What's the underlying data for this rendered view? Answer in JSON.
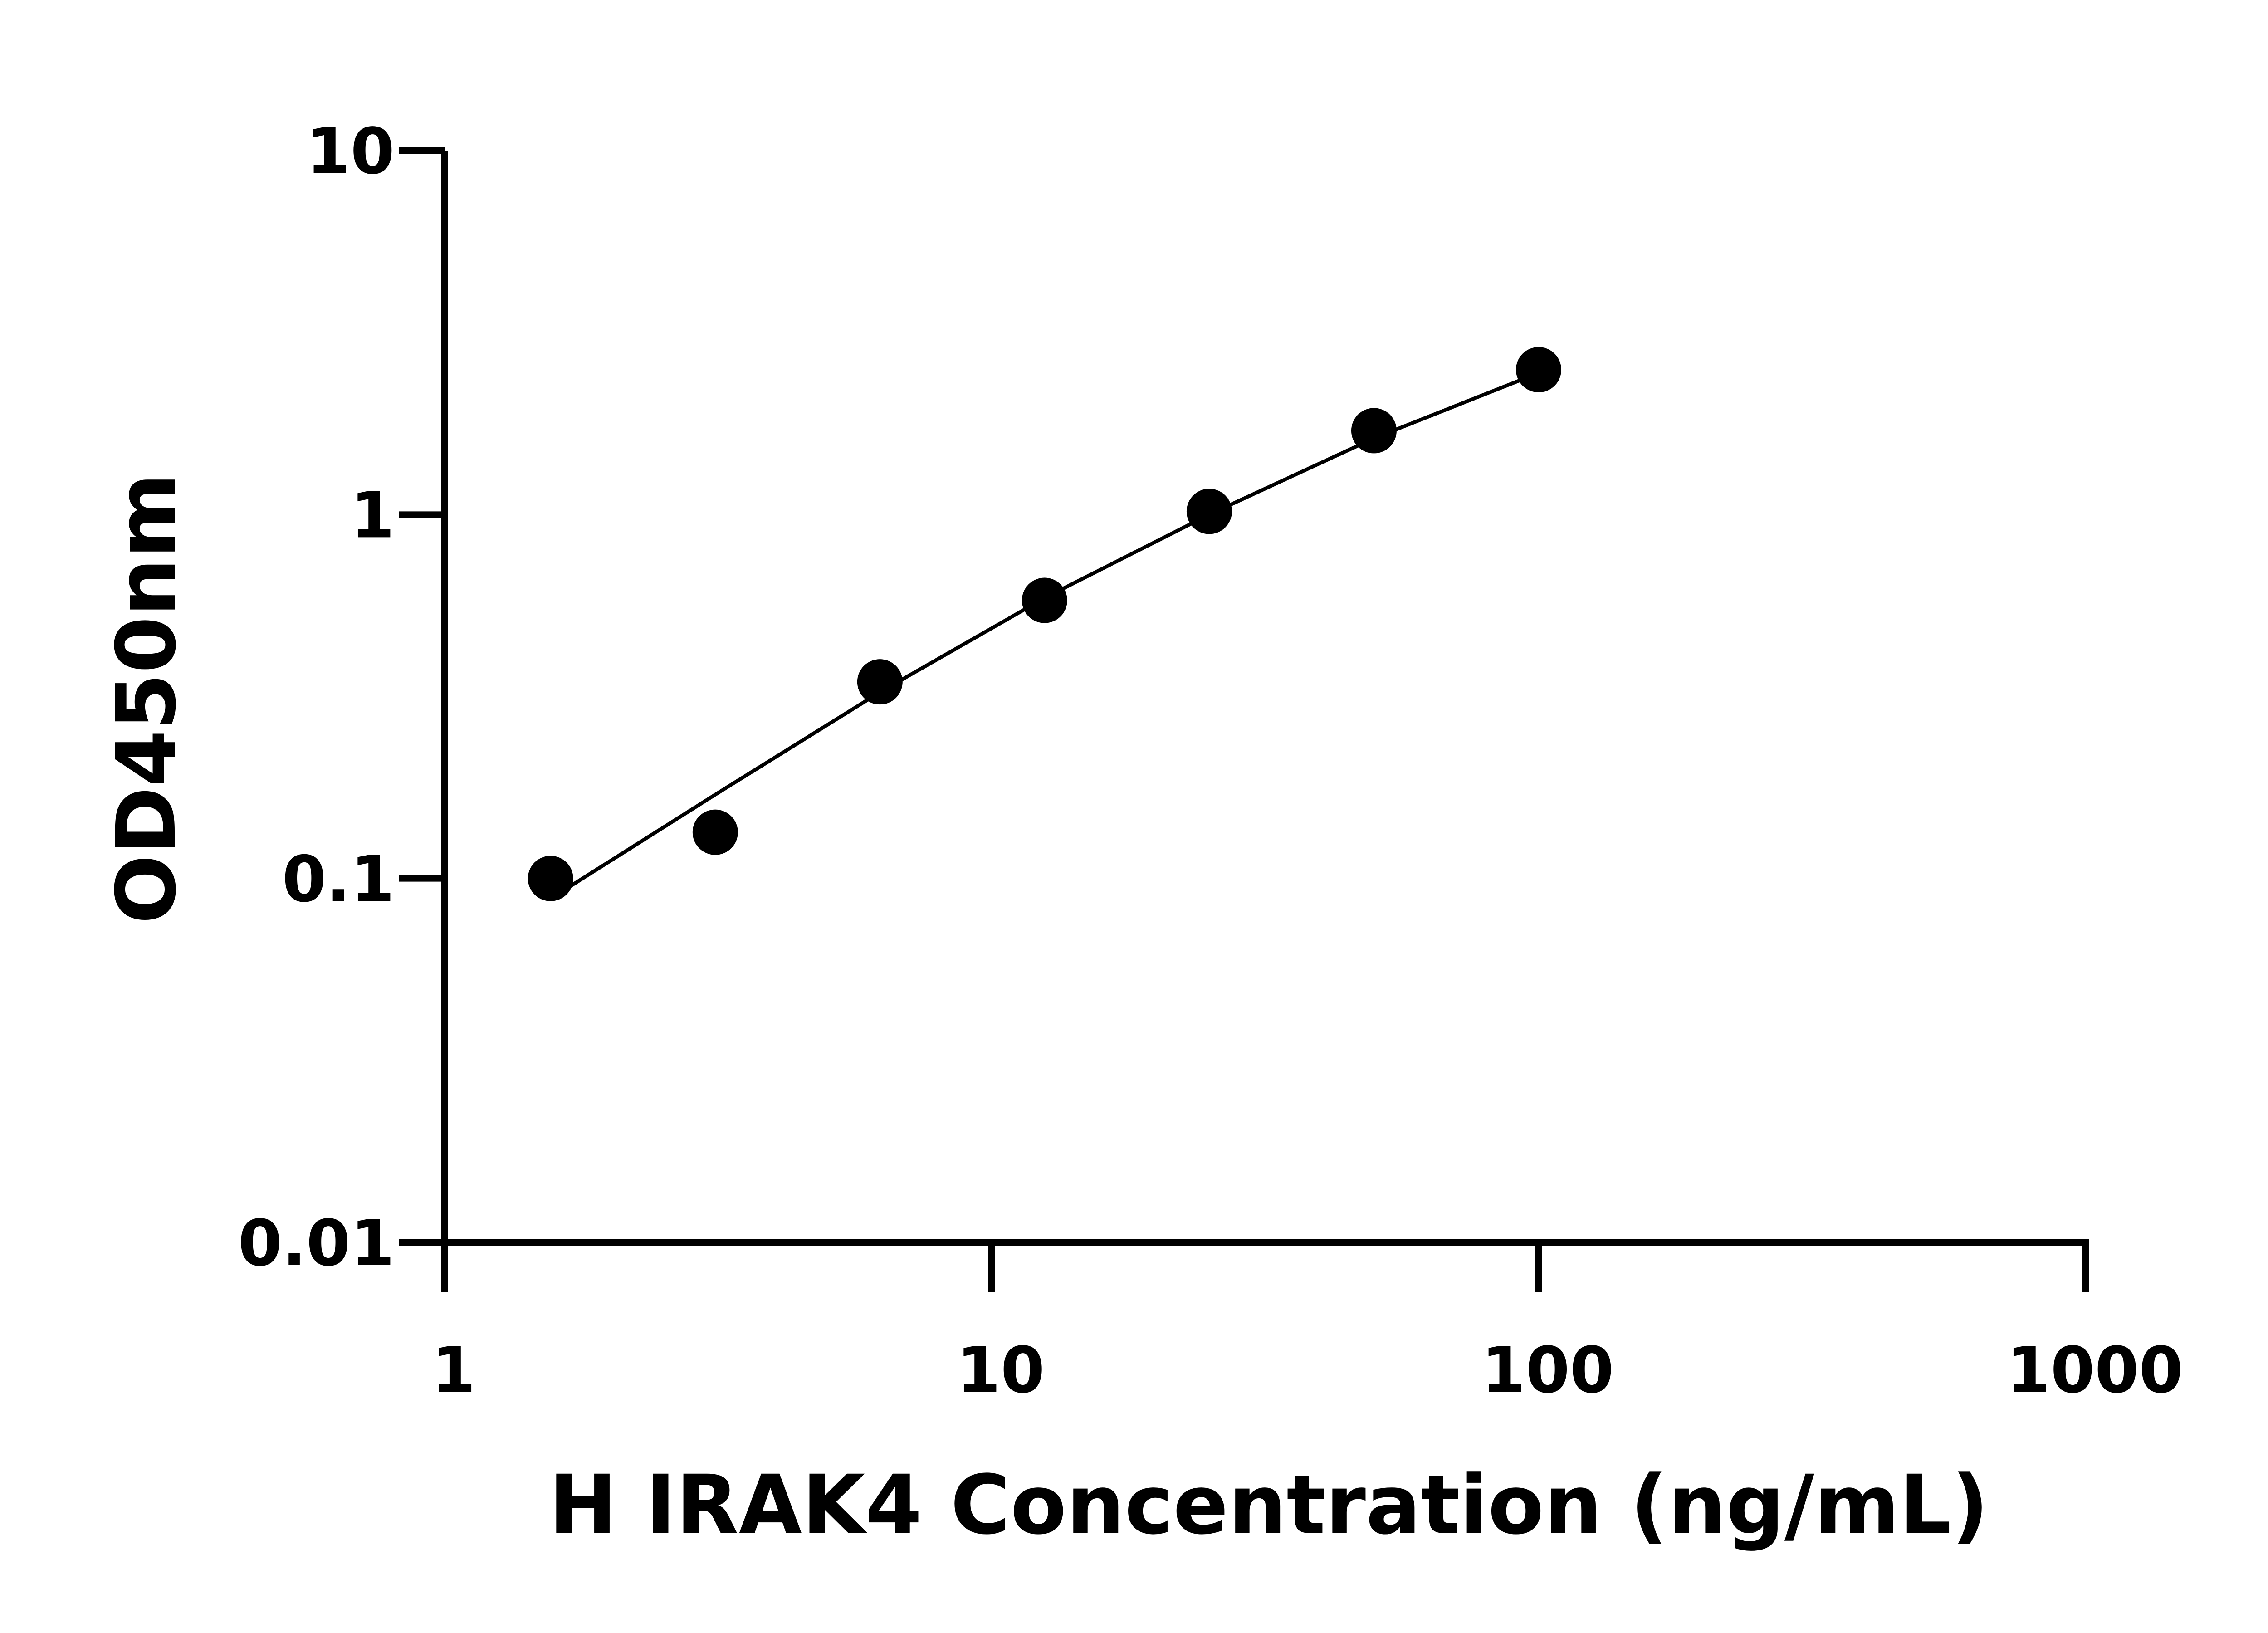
{
  "chart_data": {
    "type": "scatter",
    "title": "",
    "xlabel": "H IRAK4 Concentration (ng/mL)",
    "ylabel": "OD450nm",
    "x_scale": "log",
    "y_scale": "log",
    "xlim": [
      1,
      1000
    ],
    "ylim": [
      0.01,
      10
    ],
    "x_ticks": [
      "1",
      "10",
      "100",
      "1000"
    ],
    "y_ticks": [
      "10",
      "1",
      "0.1",
      "0.01"
    ],
    "grid": false,
    "colors": {
      "points": "#000000",
      "curve": "#000000",
      "axes": "#000000"
    },
    "points": [
      {
        "x": 1.5625,
        "y": 0.1
      },
      {
        "x": 3.125,
        "y": 0.134
      },
      {
        "x": 6.25,
        "y": 0.347
      },
      {
        "x": 12.5,
        "y": 0.581
      },
      {
        "x": 25,
        "y": 1.02
      },
      {
        "x": 50,
        "y": 1.7
      },
      {
        "x": 100,
        "y": 2.5
      }
    ],
    "fit_curve": [
      {
        "x": 1.5625,
        "y": 0.088
      },
      {
        "x": 3.125,
        "y": 0.17
      },
      {
        "x": 6.25,
        "y": 0.325
      },
      {
        "x": 12.5,
        "y": 0.59
      },
      {
        "x": 25,
        "y": 1.0
      },
      {
        "x": 50,
        "y": 1.62
      },
      {
        "x": 100,
        "y": 2.45
      }
    ]
  }
}
